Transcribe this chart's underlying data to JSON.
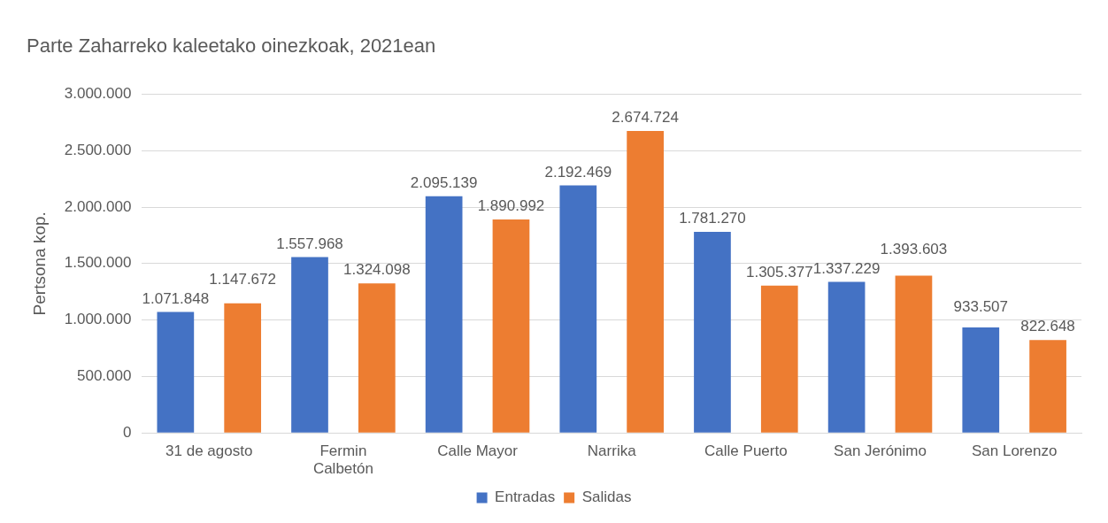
{
  "chart_data": {
    "type": "bar",
    "title": "Parte Zaharreko kaleetako oinezkoak, 2021ean",
    "ylabel": "Pertsona kop.",
    "categories": [
      "31 de agosto",
      "Fermin Calbetón",
      "Calle Mayor",
      "Narrika",
      "Calle Puerto",
      "San Jerónimo",
      "San Lorenzo"
    ],
    "series": [
      {
        "name": "Entradas",
        "color": "#4472c4",
        "values": [
          1071848,
          1557968,
          2095139,
          2192469,
          1781270,
          1337229,
          933507
        ],
        "value_labels": [
          "1.071.848",
          "1.557.968",
          "2.095.139",
          "2.192.469",
          "1.781.270",
          "1.337.229",
          "933.507"
        ]
      },
      {
        "name": "Salidas",
        "color": "#ed7d31",
        "values": [
          1147672,
          1324098,
          1890992,
          2674724,
          1305377,
          1393603,
          822648
        ],
        "value_labels": [
          "1.147.672",
          "1.324.098",
          "1.890.992",
          "2.674.724",
          "1.305.377",
          "1.393.603",
          "822.648"
        ]
      }
    ],
    "ylim": [
      0,
      3000000
    ],
    "yticks": [
      0,
      {
        "value": 500000,
        "label": "500.000"
      },
      {
        "value": 1000000,
        "label": "1.000.000"
      },
      {
        "value": 1500000,
        "label": "1.500.000"
      },
      {
        "value": 2000000,
        "label": "2.000.000"
      },
      {
        "value": 2500000,
        "label": "2.500.000"
      },
      {
        "value": 3000000,
        "label": "3.000.000"
      }
    ],
    "grid": "y",
    "legend": "bottom"
  }
}
